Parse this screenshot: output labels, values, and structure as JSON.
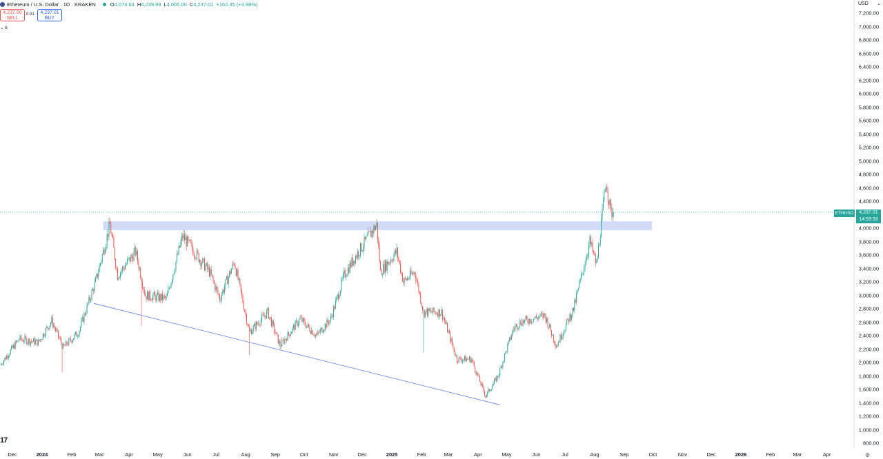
{
  "header": {
    "title": "Ethereum / U.S. Dollar · 1D · KRAKEN",
    "ohlc": [
      {
        "key": "O",
        "value": "4,074.64"
      },
      {
        "key": "H",
        "value": "4,239.99"
      },
      {
        "key": "L",
        "value": "4,065.00"
      },
      {
        "key": "C",
        "value": "4,237.01"
      },
      {
        "key": "",
        "value": "+162.35 (+3.98%)"
      }
    ]
  },
  "trade": {
    "sell_price": "4,237.00",
    "sell_label": "SELL",
    "buy_price": "4,237.01",
    "buy_label": "BUY",
    "spread": "0.01"
  },
  "indicator_label": "⌄ 6",
  "price_tag": {
    "ticker": "ETHUSD",
    "price": "4,237.01",
    "countdown": "14:59:33"
  },
  "currency": "USD",
  "colors": {
    "up": "#26a69a",
    "down": "#ef5350",
    "zone": "#c9d3f5",
    "trendline": "#5c7ce6"
  },
  "icons": {
    "logo": "tradingview-logo-icon",
    "settings": "gear-icon"
  },
  "chart_data": {
    "type": "candlestick",
    "symbol": "ETHUSD",
    "exchange": "KRAKEN",
    "interval": "1D",
    "ylim": [
      800,
      7200
    ],
    "y_ticks": [
      "7,200.00",
      "7,000.00",
      "6,800.00",
      "6,600.00",
      "6,400.00",
      "6,200.00",
      "6,000.00",
      "5,800.00",
      "5,600.00",
      "5,400.00",
      "5,200.00",
      "5,000.00",
      "4,800.00",
      "4,600.00",
      "4,400.00",
      "4,200.00",
      "4,000.00",
      "3,800.00",
      "3,600.00",
      "3,400.00",
      "3,200.00",
      "3,000.00",
      "2,800.00",
      "2,600.00",
      "2,400.00",
      "2,200.00",
      "2,000.00",
      "1,800.00",
      "1,600.00",
      "1,400.00",
      "1,200.00",
      "1,000.00",
      "800.00"
    ],
    "x_ticks": [
      {
        "label": "Dec",
        "date": "2023-12-01"
      },
      {
        "label": "2024",
        "date": "2024-01-01",
        "bold": true
      },
      {
        "label": "Feb",
        "date": "2024-02-01"
      },
      {
        "label": "Mar",
        "date": "2024-03-01"
      },
      {
        "label": "Apr",
        "date": "2024-04-01"
      },
      {
        "label": "May",
        "date": "2024-05-01"
      },
      {
        "label": "Jun",
        "date": "2024-06-01"
      },
      {
        "label": "Jul",
        "date": "2024-07-01"
      },
      {
        "label": "Aug",
        "date": "2024-08-01"
      },
      {
        "label": "Sep",
        "date": "2024-09-01"
      },
      {
        "label": "Oct",
        "date": "2024-10-01"
      },
      {
        "label": "Nov",
        "date": "2024-11-01"
      },
      {
        "label": "Dec",
        "date": "2024-12-01"
      },
      {
        "label": "2025",
        "date": "2025-01-01",
        "bold": true
      },
      {
        "label": "Feb",
        "date": "2025-02-01"
      },
      {
        "label": "Mar",
        "date": "2025-03-01"
      },
      {
        "label": "Apr",
        "date": "2025-04-01"
      },
      {
        "label": "May",
        "date": "2025-05-01"
      },
      {
        "label": "Jun",
        "date": "2025-06-01"
      },
      {
        "label": "Jul",
        "date": "2025-07-01"
      },
      {
        "label": "Aug",
        "date": "2025-08-01"
      },
      {
        "label": "Sep",
        "date": "2025-09-01"
      },
      {
        "label": "Oct",
        "date": "2025-10-01"
      },
      {
        "label": "Nov",
        "date": "2025-11-01"
      },
      {
        "label": "Dec",
        "date": "2025-12-01"
      },
      {
        "label": "2026",
        "date": "2026-01-01",
        "bold": true
      },
      {
        "label": "Feb",
        "date": "2026-02-01"
      },
      {
        "label": "Mar",
        "date": "2026-03-01"
      },
      {
        "label": "Apr",
        "date": "2026-04-01"
      }
    ],
    "x_range": [
      "2023-11-18",
      "2026-04-20"
    ],
    "last_price": 4237.01,
    "price_path": [
      {
        "date": "2023-11-18",
        "close": 1960
      },
      {
        "date": "2023-12-08",
        "close": 2350
      },
      {
        "date": "2023-12-28",
        "close": 2300
      },
      {
        "date": "2024-01-11",
        "close": 2620
      },
      {
        "date": "2024-01-23",
        "close": 2220
      },
      {
        "date": "2024-02-08",
        "close": 2450
      },
      {
        "date": "2024-02-26",
        "close": 3200
      },
      {
        "date": "2024-03-12",
        "close": 4050
      },
      {
        "date": "2024-03-20",
        "close": 3300
      },
      {
        "date": "2024-04-08",
        "close": 3650
      },
      {
        "date": "2024-04-18",
        "close": 3000
      },
      {
        "date": "2024-05-10",
        "close": 2950
      },
      {
        "date": "2024-05-27",
        "close": 3880
      },
      {
        "date": "2024-06-24",
        "close": 3350
      },
      {
        "date": "2024-07-05",
        "close": 2950
      },
      {
        "date": "2024-07-20",
        "close": 3500
      },
      {
        "date": "2024-08-05",
        "close": 2450
      },
      {
        "date": "2024-08-24",
        "close": 2750
      },
      {
        "date": "2024-09-06",
        "close": 2250
      },
      {
        "date": "2024-09-27",
        "close": 2650
      },
      {
        "date": "2024-10-14",
        "close": 2400
      },
      {
        "date": "2024-10-29",
        "close": 2650
      },
      {
        "date": "2024-11-12",
        "close": 3300
      },
      {
        "date": "2024-11-27",
        "close": 3650
      },
      {
        "date": "2024-12-16",
        "close": 4050
      },
      {
        "date": "2024-12-20",
        "close": 3350
      },
      {
        "date": "2025-01-06",
        "close": 3650
      },
      {
        "date": "2025-01-13",
        "close": 3200
      },
      {
        "date": "2025-01-25",
        "close": 3350
      },
      {
        "date": "2025-02-03",
        "close": 2750
      },
      {
        "date": "2025-02-22",
        "close": 2750
      },
      {
        "date": "2025-03-10",
        "close": 2050
      },
      {
        "date": "2025-03-25",
        "close": 2050
      },
      {
        "date": "2025-04-09",
        "close": 1500
      },
      {
        "date": "2025-04-22",
        "close": 1800
      },
      {
        "date": "2025-05-08",
        "close": 2500
      },
      {
        "date": "2025-05-15",
        "close": 2600
      },
      {
        "date": "2025-06-10",
        "close": 2700
      },
      {
        "date": "2025-06-22",
        "close": 2250
      },
      {
        "date": "2025-07-10",
        "close": 2800
      },
      {
        "date": "2025-07-27",
        "close": 3800
      },
      {
        "date": "2025-08-03",
        "close": 3450
      },
      {
        "date": "2025-08-13",
        "close": 4700
      },
      {
        "date": "2025-08-18",
        "close": 4240
      },
      {
        "date": "2025-08-21",
        "close": 4237.01
      }
    ],
    "wick_spikes": [
      {
        "date": "2024-01-22",
        "low": 1850
      },
      {
        "date": "2024-04-14",
        "low": 2540
      },
      {
        "date": "2024-08-05",
        "low": 2110
      },
      {
        "date": "2025-02-03",
        "low": 2150
      }
    ],
    "annotations": [
      {
        "type": "rectangle",
        "label": "resistance-zone",
        "date_from": "2024-03-05",
        "date_to": "2025-09-30",
        "price_from": 3970,
        "price_to": 4100
      },
      {
        "type": "trendline",
        "label": "support-trendline",
        "points": [
          {
            "date": "2024-02-24",
            "price": 2880
          },
          {
            "date": "2025-04-24",
            "price": 1370
          }
        ]
      }
    ]
  }
}
